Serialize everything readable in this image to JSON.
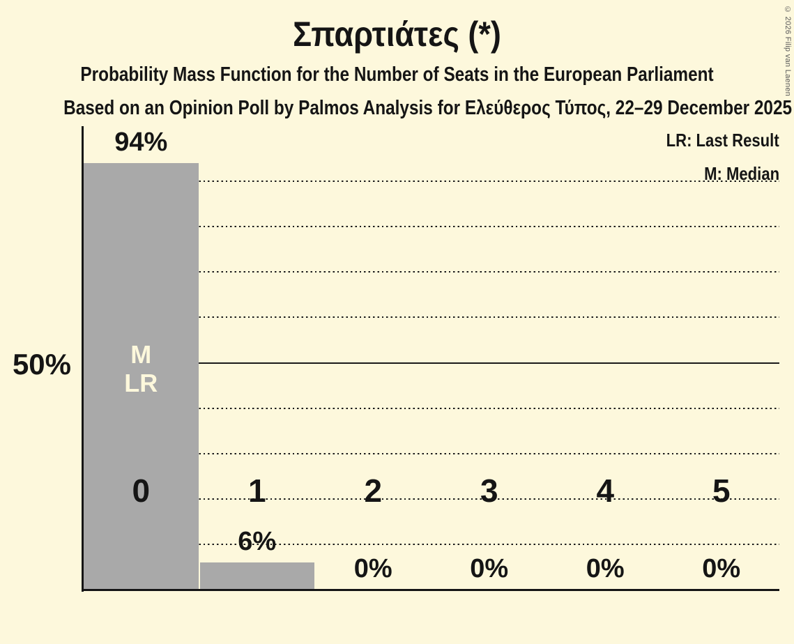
{
  "title": "Σπαρτιάτες (*)",
  "subtitle1": "Probability Mass Function for the Number of Seats in the European Parliament",
  "subtitle2": "Based on an Opinion Poll by Palmos Analysis for Ελεύθερος Τύπος, 22–29 December 2025",
  "copyright": "© 2026 Filip van Laenen",
  "legend": {
    "last_result": "LR: Last Result",
    "median": "M: Median"
  },
  "y_axis": {
    "tick_label": "50%",
    "tick_value": 50
  },
  "colors": {
    "background": "#fdf8dc",
    "bar": "#a9a9a9",
    "text": "#151515",
    "marker_text": "#fdf8dc",
    "copyright_text": "#595959"
  },
  "chart_data": {
    "type": "bar",
    "title": "Σπαρτιάτες (*)",
    "categories": [
      "0",
      "1",
      "2",
      "3",
      "4",
      "5"
    ],
    "values": [
      94,
      6,
      0,
      0,
      0,
      0
    ],
    "value_labels": [
      "94%",
      "6%",
      "0%",
      "0%",
      "0%",
      "0%"
    ],
    "ylim": [
      0,
      102
    ],
    "gridlines": {
      "dotted_at": [
        10,
        20,
        30,
        40,
        60,
        70,
        80,
        90
      ],
      "solid_at": [
        50
      ]
    },
    "legend_position": "top-right",
    "markers": [
      {
        "bar_index": 0,
        "lines": [
          "M",
          "LR"
        ],
        "at_value": 50
      }
    ]
  }
}
